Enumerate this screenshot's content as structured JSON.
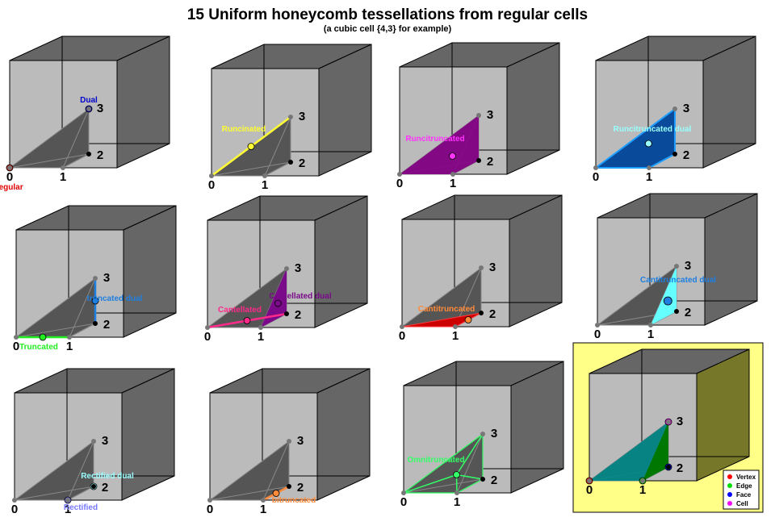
{
  "header": {
    "title": "15 Uniform honeycomb tessellations from regular cells",
    "subtitle": "(a cubic cell {4,3} for example)"
  },
  "vertex_labels": [
    "0",
    "1",
    "2",
    "3"
  ],
  "panels": [
    {
      "labels": [
        {
          "text": "Dual",
          "color": "#0000cc"
        },
        {
          "text": "Regular",
          "color": "#e00000"
        }
      ]
    },
    {
      "labels": [
        {
          "text": "Runcinated",
          "color": "#ffff33"
        }
      ]
    },
    {
      "labels": [
        {
          "text": "Runcitruncated",
          "color": "#ff33ff"
        }
      ]
    },
    {
      "labels": [
        {
          "text": "Runcitruncated dual",
          "color": "#99ffff"
        }
      ]
    },
    {
      "labels": [
        {
          "text": "truncated dual",
          "color": "#1e7fe0"
        },
        {
          "text": "Truncated",
          "color": "#22ee22"
        }
      ]
    },
    {
      "labels": [
        {
          "text": "Cantellated",
          "color": "#ff2a8a"
        },
        {
          "text": "Cantellated dual",
          "color": "#7a0a8a"
        }
      ]
    },
    {
      "labels": [
        {
          "text": "Cantitruncated",
          "color": "#ff8a3a"
        }
      ]
    },
    {
      "labels": [
        {
          "text": "Cantitruncated dual",
          "color": "#1e7fe0"
        }
      ]
    },
    {
      "labels": [
        {
          "text": "Rectified dual",
          "color": "#99ffff"
        },
        {
          "text": "Rectified",
          "color": "#7777ff"
        }
      ]
    },
    {
      "labels": [
        {
          "text": "bitruncated",
          "color": "#ff8a3a"
        }
      ]
    },
    {
      "labels": [
        {
          "text": "Omnitruncated",
          "color": "#33ff66"
        }
      ]
    },
    {
      "labels": []
    }
  ],
  "legend": [
    {
      "text": "Vertex",
      "color": "#ff0000"
    },
    {
      "text": "Edge",
      "color": "#00dd00"
    },
    {
      "text": "Face",
      "color": "#0000ff"
    },
    {
      "text": "Cell",
      "color": "#ff00ff"
    }
  ]
}
